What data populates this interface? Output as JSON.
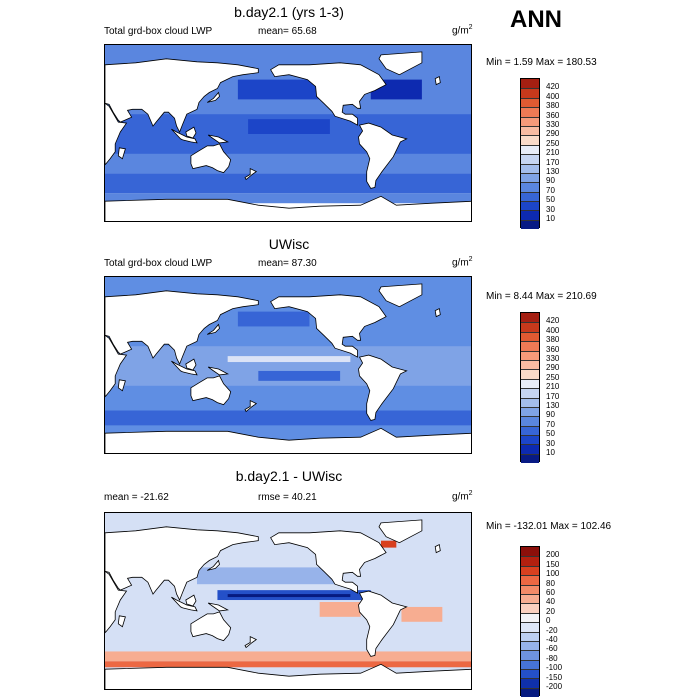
{
  "season": "ANN",
  "panels": [
    {
      "title": "b.day2.1 (yrs 1-3)",
      "left_label": "Total grd-box cloud LWP",
      "center_label": "mean=  65.68",
      "units": "g/m",
      "units_exp": "2",
      "minmax": "Min =   1.59 Max = 180.53",
      "levels": [
        "420",
        "400",
        "380",
        "360",
        "330",
        "290",
        "250",
        "210",
        "170",
        "130",
        "90",
        "70",
        "50",
        "30",
        "10"
      ],
      "colors": [
        "#a51f12",
        "#c7391c",
        "#e05a32",
        "#ef7a55",
        "#f69a7a",
        "#f8bba2",
        "#fadbc9",
        "#e8edf8",
        "#c6d5f2",
        "#a3bdec",
        "#7fa3e6",
        "#5a86df",
        "#3765d6",
        "#1c45c8",
        "#0d2ab0",
        "#081a84"
      ],
      "ocean_color": "#3f6fd8"
    },
    {
      "title": "UWisc",
      "left_label": "Total grd-box cloud LWP",
      "center_label": "mean=  87.30",
      "units": "g/m",
      "units_exp": "2",
      "minmax": "Min =   8.44 Max = 210.69",
      "levels": [
        "420",
        "400",
        "380",
        "360",
        "330",
        "290",
        "250",
        "210",
        "170",
        "130",
        "90",
        "70",
        "50",
        "30",
        "10"
      ],
      "colors": [
        "#a51f12",
        "#c7391c",
        "#e05a32",
        "#ef7a55",
        "#f69a7a",
        "#f8bba2",
        "#fadbc9",
        "#e8edf8",
        "#c6d5f2",
        "#a3bdec",
        "#7fa3e6",
        "#5a86df",
        "#3765d6",
        "#1c45c8",
        "#0d2ab0",
        "#081a84"
      ],
      "ocean_color": "#5f8ee3"
    },
    {
      "title": "b.day2.1 - UWisc",
      "left_label": "mean = -21.62",
      "center_label": "rmse =  40.21",
      "units": "g/m",
      "units_exp": "2",
      "minmax": "Min = -132.01 Max = 102.46",
      "levels": [
        "200",
        "150",
        "100",
        "80",
        "60",
        "40",
        "20",
        "0",
        "-20",
        "-40",
        "-60",
        "-80",
        "-100",
        "-150",
        "-200"
      ],
      "colors": [
        "#8b0f0a",
        "#b3200f",
        "#d8401f",
        "#ec6843",
        "#f38b68",
        "#f7ad91",
        "#fbd0bf",
        "#f3f3f6",
        "#dde6f7",
        "#bccff2",
        "#97b3ea",
        "#6e93e0",
        "#4673d6",
        "#2450c8",
        "#0f30ac",
        "#061a80"
      ],
      "ocean_color": "#d5e0f5"
    }
  ]
}
